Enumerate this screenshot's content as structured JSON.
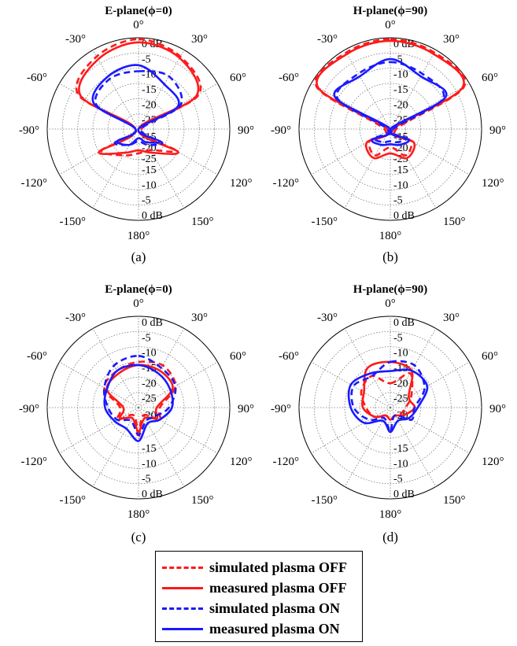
{
  "colors": {
    "red": "#ff1a1a",
    "blue": "#1a1aff",
    "grid": "#7a7a7a"
  },
  "legend": {
    "items": [
      {
        "label": "simulated plasma OFF",
        "color": "#ff1a1a",
        "style": "dashed"
      },
      {
        "label": "measured plasma OFF",
        "color": "#ff1a1a",
        "style": "solid"
      },
      {
        "label": "simulated plasma ON",
        "color": "#1a1aff",
        "style": "dashed"
      },
      {
        "label": "measured plasma ON",
        "color": "#1a1aff",
        "style": "solid"
      }
    ]
  },
  "chart_data": [
    {
      "type": "polar",
      "panel": "(a)",
      "title": "E-plane(ϕ=0)",
      "angle_labels": [
        "0°",
        "30°",
        "60°",
        "90°",
        "120°",
        "150°",
        "180°",
        "-150°",
        "-120°",
        "-90°",
        "-60°",
        "-30°"
      ],
      "radial_labels_upper": [
        "0 dB",
        "-5",
        "-10",
        "-15",
        "-20",
        "-25"
      ],
      "radial_labels_lower": [
        "-15",
        "-20",
        "-25"
      ],
      "radial_labels_lower_extra": [
        "-10",
        "-15",
        "-20",
        "-25"
      ],
      "radial_labels_bottom": [
        "-15",
        "-10",
        "-5",
        "0 dB"
      ],
      "radial_range_db": [
        -30,
        0
      ],
      "angles_deg": [
        0,
        30,
        60,
        90,
        120,
        150,
        180,
        210,
        240,
        270,
        300,
        330
      ],
      "series": [
        {
          "name": "simulated plasma OFF",
          "values_db": [
            -0.5,
            -2.5,
            -7,
            -29,
            -16,
            -22,
            -22,
            -20,
            -16,
            -29,
            -7,
            -2.5
          ]
        },
        {
          "name": "measured plasma OFF",
          "values_db": [
            -1.5,
            -3,
            -8,
            -30,
            -15,
            -21,
            -23,
            -21,
            -15,
            -29,
            -8,
            -3.5
          ]
        },
        {
          "name": "simulated plasma ON",
          "values_db": [
            -11,
            -10,
            -14,
            -29,
            -21,
            -24,
            -26,
            -24,
            -21,
            -29,
            -14,
            -11
          ]
        },
        {
          "name": "measured plasma ON",
          "values_db": [
            -9,
            -13,
            -15,
            -30,
            -22,
            -25,
            -27,
            -24,
            -22,
            -29,
            -13,
            -10
          ]
        }
      ]
    },
    {
      "type": "polar",
      "panel": "(b)",
      "title": "H-plane(ϕ=90)",
      "angle_labels": [
        "0°",
        "30°",
        "60°",
        "90°",
        "120°",
        "150°",
        "180°",
        "-150°",
        "-120°",
        "-90°",
        "-60°",
        "-30°"
      ],
      "radial_labels_upper": [
        "0 dB",
        "-5",
        "-10",
        "-15",
        "-20",
        "-25"
      ],
      "radial_labels_lower": [
        "-15",
        "-20",
        "-25"
      ],
      "radial_labels_lower_extra": [
        "-10",
        "-15",
        "-20",
        "-25"
      ],
      "radial_labels_bottom": [
        "-15",
        "-10",
        "-5",
        "0 dB"
      ],
      "radial_range_db": [
        -30,
        0
      ],
      "angles_deg": [
        0,
        30,
        60,
        90,
        120,
        150,
        180,
        210,
        240,
        270,
        300,
        330
      ],
      "series": [
        {
          "name": "simulated plasma OFF",
          "values_db": [
            -0.5,
            -1,
            -2,
            -28,
            -22,
            -20,
            -24,
            -20,
            -22,
            -28,
            -2,
            -1
          ]
        },
        {
          "name": "measured plasma OFF",
          "values_db": [
            -1,
            -1.5,
            -2.5,
            -29,
            -21,
            -19,
            -22,
            -19,
            -21,
            -29,
            -2.5,
            -1.5
          ]
        },
        {
          "name": "simulated plasma ON",
          "values_db": [
            -8,
            -9,
            -10,
            -29,
            -24,
            -25,
            -26,
            -25,
            -24,
            -29,
            -10,
            -9
          ]
        },
        {
          "name": "measured plasma ON",
          "values_db": [
            -7,
            -10,
            -9,
            -30,
            -23,
            -24,
            -25,
            -24,
            -23,
            -30,
            -9,
            -10
          ]
        }
      ]
    },
    {
      "type": "polar",
      "panel": "(c)",
      "title": "E-plane(ϕ=0)",
      "angle_labels": [
        "0°",
        "30°",
        "60°",
        "90°",
        "120°",
        "150°",
        "180°",
        "-150°",
        "-120°",
        "-90°",
        "-60°",
        "-30°"
      ],
      "radial_labels_upper": [
        "0 dB",
        "-5",
        "-10",
        "-15",
        "-20",
        "-25"
      ],
      "radial_labels_lower": [
        "-20"
      ],
      "radial_labels_lower_extra": [
        "-20",
        "-15"
      ],
      "radial_labels_bottom": [
        "-15",
        "-10",
        "-5",
        "0 dB"
      ],
      "radial_range_db": [
        -30,
        0
      ],
      "angles_deg": [
        0,
        30,
        60,
        90,
        120,
        150,
        180,
        210,
        240,
        270,
        300,
        330
      ],
      "series": [
        {
          "name": "simulated plasma OFF",
          "values_db": [
            -15,
            -14,
            -16,
            -23,
            -22,
            -27,
            -20,
            -27,
            -22,
            -24,
            -17,
            -16
          ]
        },
        {
          "name": "measured plasma OFF",
          "values_db": [
            -16,
            -16,
            -17,
            -24,
            -23,
            -26,
            -22,
            -26,
            -23,
            -25,
            -18,
            -17
          ]
        },
        {
          "name": "simulated plasma ON",
          "values_db": [
            -13,
            -15,
            -16,
            -20,
            -24,
            -25,
            -21,
            -25,
            -22,
            -20,
            -17,
            -14
          ]
        },
        {
          "name": "measured plasma ON",
          "values_db": [
            -16,
            -17,
            -18,
            -19,
            -22,
            -24,
            -19,
            -22,
            -21,
            -19,
            -18,
            -16
          ]
        }
      ]
    },
    {
      "type": "polar",
      "panel": "(d)",
      "title": "H-plane(ϕ=90)",
      "angle_labels": [
        "0°",
        "30°",
        "60°",
        "90°",
        "120°",
        "150°",
        "180°",
        "-150°",
        "-120°",
        "-90°",
        "-60°",
        "-30°"
      ],
      "radial_labels_upper": [
        "0 dB",
        "-5",
        "-10",
        "-15",
        "-20",
        "-25"
      ],
      "radial_labels_lower": [
        "-20"
      ],
      "radial_labels_lower_extra": [
        "-20",
        "-15"
      ],
      "radial_labels_bottom": [
        "-15",
        "-10",
        "-5",
        "0 dB"
      ],
      "radial_range_db": [
        -30,
        0
      ],
      "angles_deg": [
        0,
        30,
        60,
        90,
        120,
        150,
        180,
        210,
        240,
        270,
        300,
        330
      ],
      "series": [
        {
          "name": "simulated plasma OFF",
          "values_db": [
            -22,
            -17,
            -22,
            -25,
            -26,
            -27,
            -26,
            -27,
            -24,
            -22,
            -19,
            -18
          ]
        },
        {
          "name": "measured plasma OFF",
          "values_db": [
            -15,
            -16,
            -23,
            -22,
            -25,
            -27,
            -26,
            -27,
            -24,
            -21,
            -20,
            -15
          ]
        },
        {
          "name": "simulated plasma ON",
          "values_db": [
            -15,
            -14,
            -17,
            -22,
            -22,
            -27,
            -22,
            -26,
            -22,
            -18,
            -16,
            -18
          ]
        },
        {
          "name": "measured plasma ON",
          "values_db": [
            -18,
            -16,
            -16,
            -21,
            -23,
            -25,
            -22,
            -25,
            -20,
            -17,
            -15,
            -17
          ]
        }
      ]
    }
  ]
}
